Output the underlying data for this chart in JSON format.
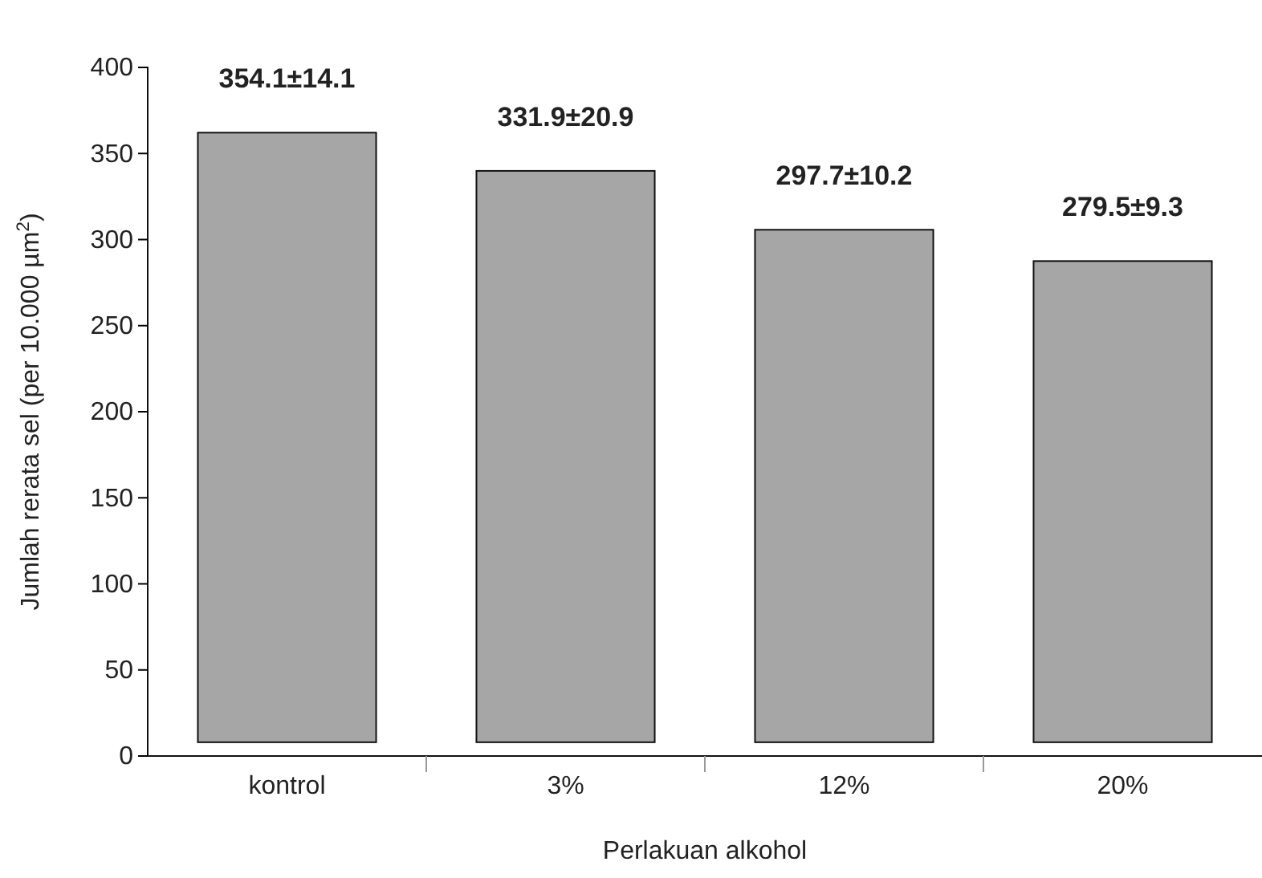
{
  "chart_data": {
    "type": "bar",
    "xlabel": "Perlakuan alkohol",
    "ylabel": "Jumlah rerata sel (per 10.000 µm$^{2}$)",
    "categories": [
      "kontrol",
      "3%",
      "12%",
      "20%"
    ],
    "values": [
      354.1,
      331.9,
      297.7,
      279.5
    ],
    "base": [
      8,
      8,
      8,
      8
    ],
    "value_labels": [
      "354.1±14.1",
      "331.9±20.9",
      "297.7±10.2",
      "279.5±9.3"
    ],
    "color": "#a6a6a6",
    "ylim": [
      0,
      400
    ],
    "yticks": [
      0,
      50,
      100,
      150,
      200,
      250,
      300,
      350,
      400
    ],
    "grid": false
  }
}
